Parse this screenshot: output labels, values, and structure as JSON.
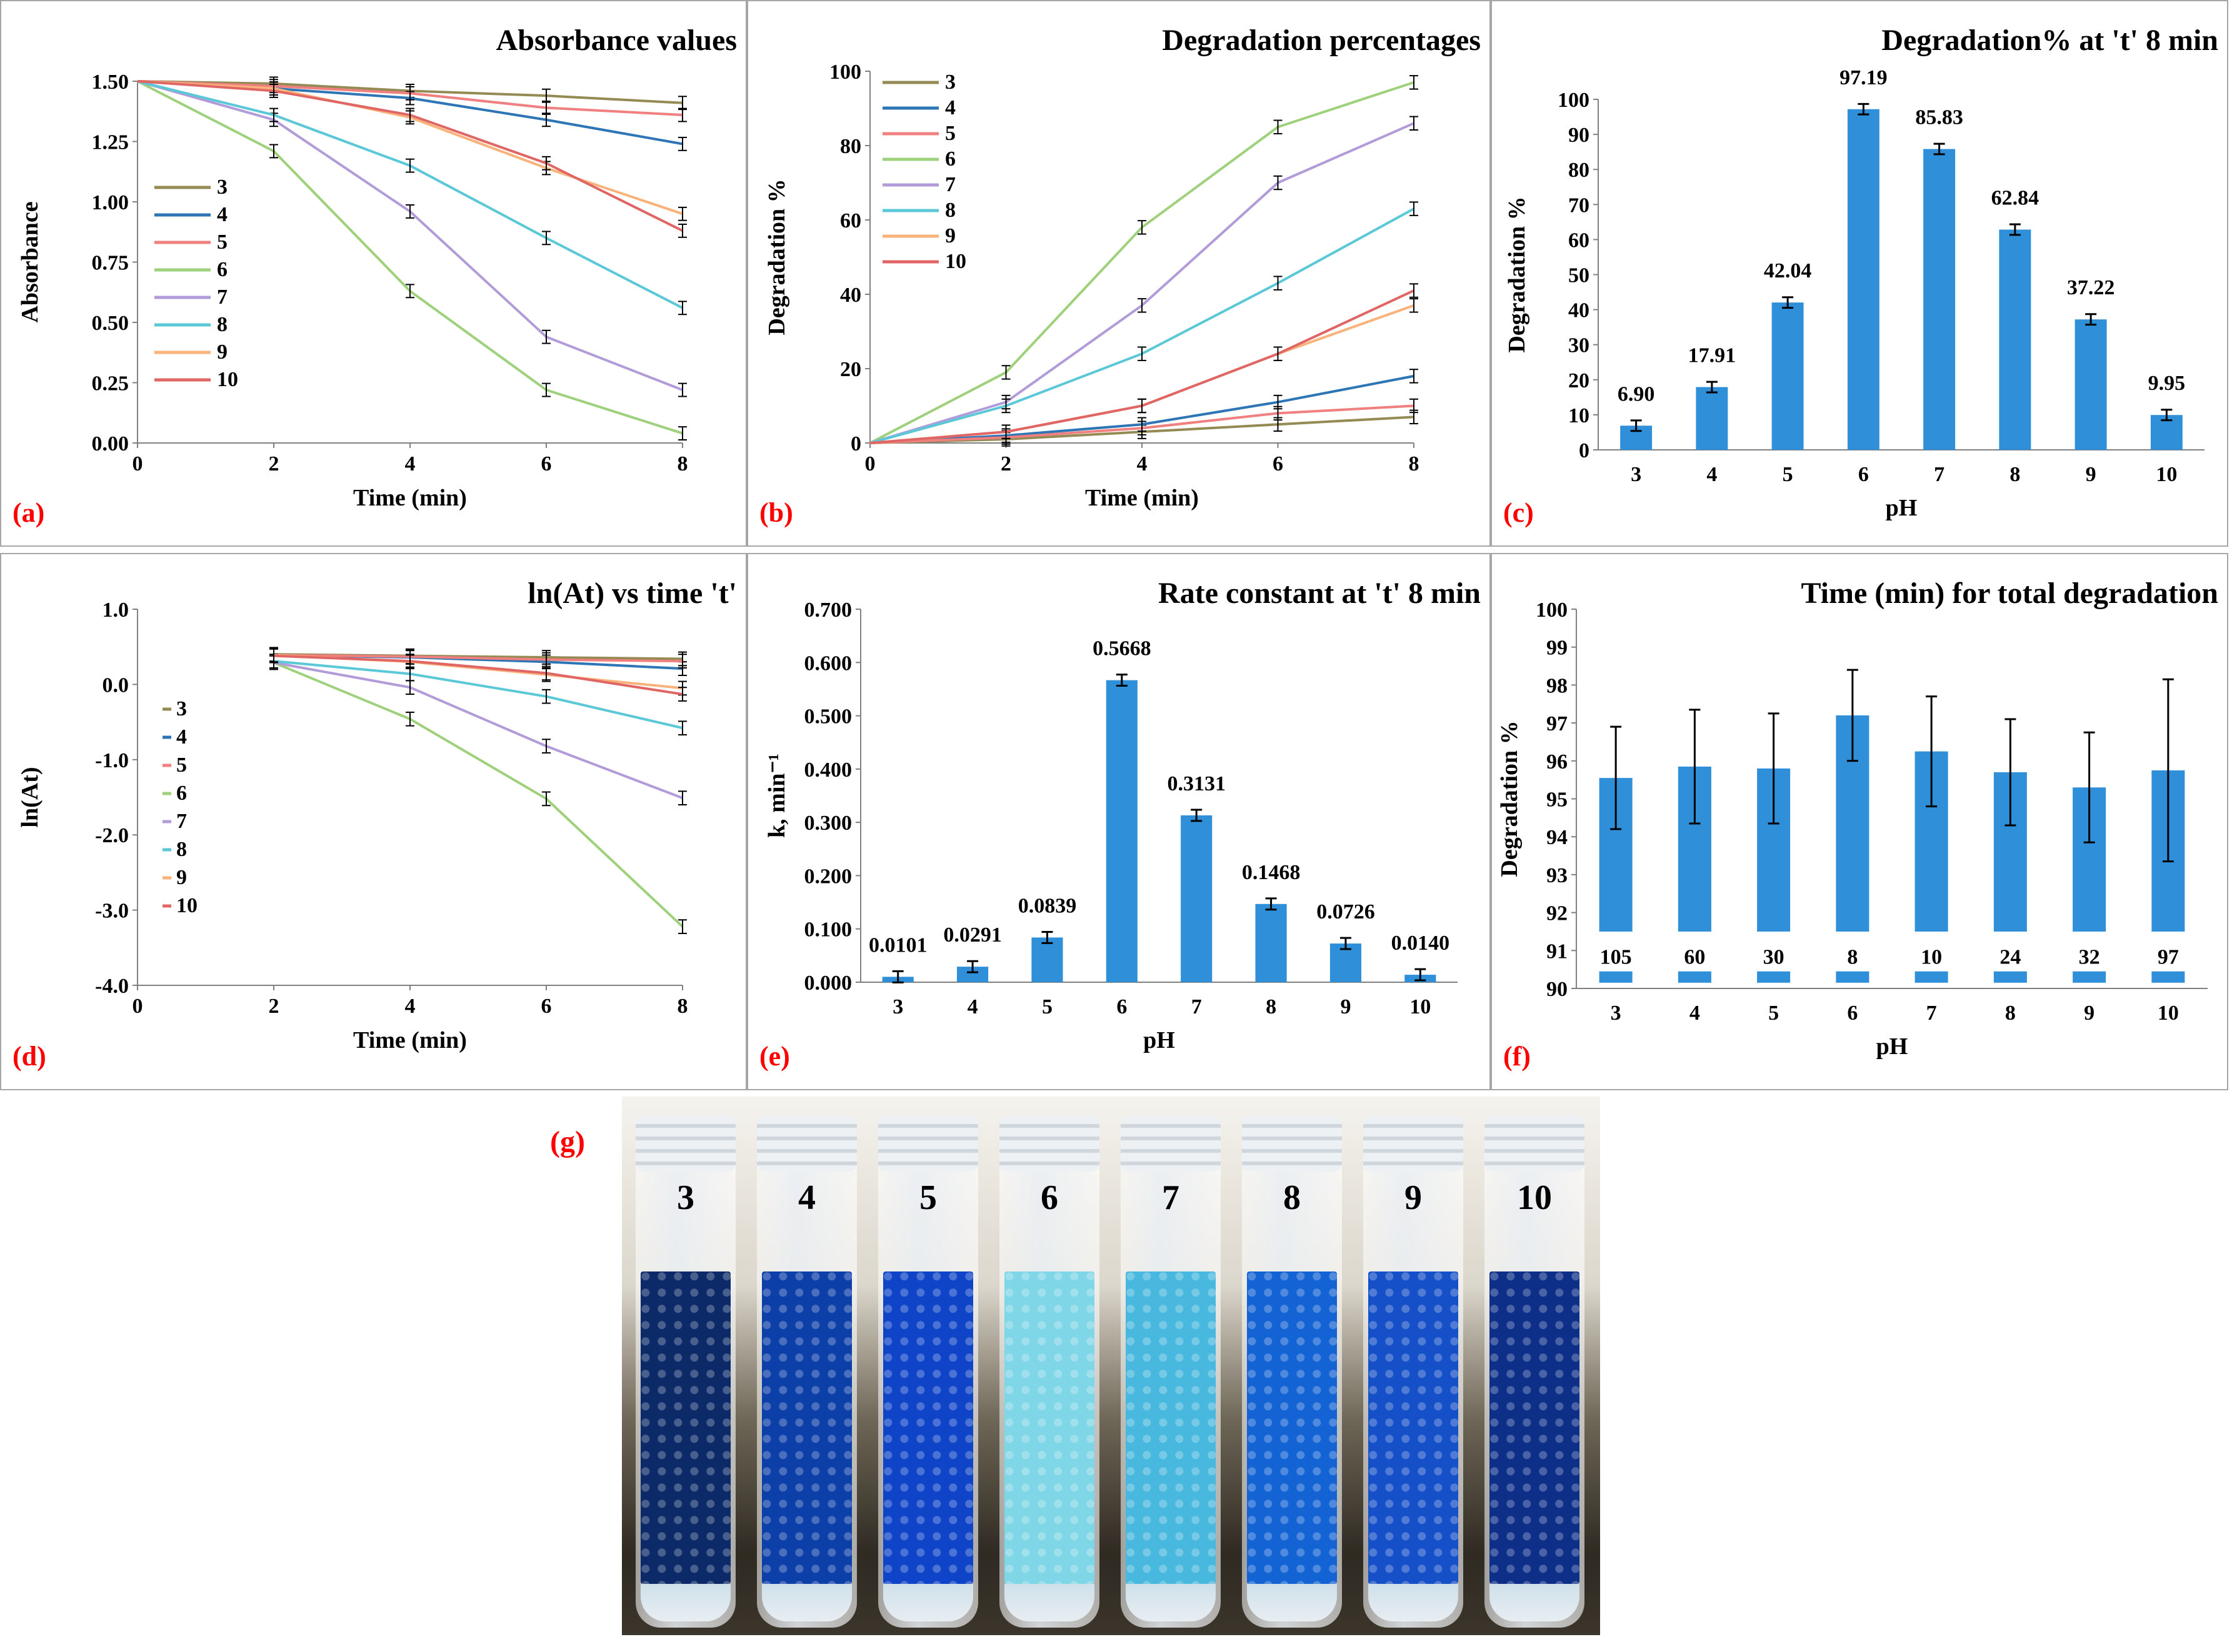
{
  "colors": {
    "pH3": "#948a54",
    "pH4": "#2e75b6",
    "pH5": "#f08080",
    "pH6": "#9fd17d",
    "pH7": "#b19cd9",
    "pH8": "#5bc8d8",
    "pH9": "#fab27b",
    "pH10": "#e06666",
    "bar": "#2f8fd8",
    "label_red": "#ff0000"
  },
  "chart_data": [
    {
      "id": "a",
      "type": "line",
      "panel_label": "(a)",
      "title": "Absorbance values",
      "xlabel": "Time (min)",
      "ylabel": "Absorbance",
      "xlim": [
        0,
        8
      ],
      "ylim": [
        0,
        1.5
      ],
      "x_ticks": [
        "0",
        "2",
        "4",
        "6",
        "8"
      ],
      "y_ticks": [
        "0.00",
        "0.25",
        "0.50",
        "0.75",
        "1.00",
        "1.25",
        "1.50"
      ],
      "x": [
        0,
        2,
        4,
        6,
        8
      ],
      "legend": "left",
      "series": [
        {
          "name": "3",
          "values": [
            1.5,
            1.49,
            1.46,
            1.44,
            1.41
          ]
        },
        {
          "name": "4",
          "values": [
            1.5,
            1.47,
            1.43,
            1.34,
            1.24
          ]
        },
        {
          "name": "5",
          "values": [
            1.5,
            1.48,
            1.45,
            1.39,
            1.36
          ]
        },
        {
          "name": "6",
          "values": [
            1.5,
            1.21,
            0.63,
            0.22,
            0.04
          ]
        },
        {
          "name": "7",
          "values": [
            1.5,
            1.34,
            0.96,
            0.44,
            0.22
          ]
        },
        {
          "name": "8",
          "values": [
            1.5,
            1.36,
            1.15,
            0.85,
            0.56
          ]
        },
        {
          "name": "9",
          "values": [
            1.5,
            1.47,
            1.35,
            1.14,
            0.95
          ]
        },
        {
          "name": "10",
          "values": [
            1.5,
            1.46,
            1.36,
            1.16,
            0.88
          ]
        }
      ]
    },
    {
      "id": "b",
      "type": "line",
      "panel_label": "(b)",
      "title": "Degradation percentages",
      "xlabel": "Time (min)",
      "ylabel": "Degradation %",
      "xlim": [
        0,
        8
      ],
      "ylim": [
        0,
        100
      ],
      "x_ticks": [
        "0",
        "2",
        "4",
        "6",
        "8"
      ],
      "y_ticks": [
        "0",
        "20",
        "40",
        "60",
        "80",
        "100"
      ],
      "x": [
        0,
        2,
        4,
        6,
        8
      ],
      "legend": "top-left",
      "series": [
        {
          "name": "3",
          "values": [
            0,
            1,
            3,
            5,
            7
          ]
        },
        {
          "name": "4",
          "values": [
            0,
            2,
            5,
            11,
            18
          ]
        },
        {
          "name": "5",
          "values": [
            0,
            1.5,
            4,
            8,
            10
          ]
        },
        {
          "name": "6",
          "values": [
            0,
            19,
            58,
            85,
            97
          ]
        },
        {
          "name": "7",
          "values": [
            0,
            11,
            37,
            70,
            86
          ]
        },
        {
          "name": "8",
          "values": [
            0,
            10,
            24,
            43,
            63
          ]
        },
        {
          "name": "9",
          "values": [
            0,
            3,
            10,
            24,
            37
          ]
        },
        {
          "name": "10",
          "values": [
            0,
            3,
            10,
            24,
            41
          ]
        }
      ]
    },
    {
      "id": "c",
      "type": "bar",
      "panel_label": "(c)",
      "title": "Degradation% at 't' 8 min",
      "xlabel": "pH",
      "ylabel": "Degradation %",
      "ylim": [
        0,
        100
      ],
      "y_ticks": [
        "0",
        "10",
        "20",
        "30",
        "40",
        "50",
        "60",
        "70",
        "80",
        "90",
        "100"
      ],
      "categories": [
        "3",
        "4",
        "5",
        "6",
        "7",
        "8",
        "9",
        "10"
      ],
      "values": [
        6.9,
        17.91,
        42.04,
        97.19,
        85.83,
        62.84,
        37.22,
        9.95
      ],
      "data_labels": [
        "6.90",
        "17.91",
        "42.04",
        "97.19",
        "85.83",
        "62.84",
        "37.22",
        "9.95"
      ]
    },
    {
      "id": "d",
      "type": "line",
      "panel_label": "(d)",
      "title": "ln(At) vs time 't'",
      "xlabel": "Time (min)",
      "ylabel": "ln(At)",
      "xlim": [
        0,
        8
      ],
      "ylim": [
        -4,
        1
      ],
      "x_ticks": [
        "0",
        "2",
        "4",
        "6",
        "8"
      ],
      "y_ticks": [
        "-4.0",
        "-3.0",
        "-2.0",
        "-1.0",
        "0.0",
        "1.0"
      ],
      "x": [
        2,
        4,
        6,
        8
      ],
      "legend": "left",
      "series": [
        {
          "name": "3",
          "values": [
            0.4,
            0.38,
            0.36,
            0.34
          ]
        },
        {
          "name": "4",
          "values": [
            0.39,
            0.36,
            0.3,
            0.21
          ]
        },
        {
          "name": "5",
          "values": [
            0.39,
            0.37,
            0.33,
            0.31
          ]
        },
        {
          "name": "6",
          "values": [
            0.29,
            -0.46,
            -1.52,
            -3.22
          ]
        },
        {
          "name": "7",
          "values": [
            0.29,
            -0.04,
            -0.82,
            -1.51
          ]
        },
        {
          "name": "8",
          "values": [
            0.31,
            0.14,
            -0.16,
            -0.58
          ]
        },
        {
          "name": "9",
          "values": [
            0.39,
            0.3,
            0.13,
            -0.05
          ]
        },
        {
          "name": "10",
          "values": [
            0.38,
            0.31,
            0.15,
            -0.13
          ]
        }
      ]
    },
    {
      "id": "e",
      "type": "bar",
      "panel_label": "(e)",
      "title": "Rate constant at 't' 8 min",
      "xlabel": "pH",
      "ylabel": "k, min⁻¹",
      "ylim": [
        0,
        0.7
      ],
      "y_ticks": [
        "0.000",
        "0.100",
        "0.200",
        "0.300",
        "0.400",
        "0.500",
        "0.600",
        "0.700"
      ],
      "categories": [
        "3",
        "4",
        "5",
        "6",
        "7",
        "8",
        "9",
        "10"
      ],
      "values": [
        0.0101,
        0.0291,
        0.0839,
        0.5668,
        0.3131,
        0.1468,
        0.0726,
        0.014
      ],
      "data_labels": [
        "0.0101",
        "0.0291",
        "0.0839",
        "0.5668",
        "0.3131",
        "0.1468",
        "0.0726",
        "0.0140"
      ]
    },
    {
      "id": "f",
      "type": "bar",
      "panel_label": "(f)",
      "title": "Time (min) for total degradation",
      "xlabel": "pH",
      "ylabel": "Degradation %",
      "ylim": [
        90,
        100
      ],
      "y_ticks": [
        "90",
        "91",
        "92",
        "93",
        "94",
        "95",
        "96",
        "97",
        "98",
        "99",
        "100"
      ],
      "categories": [
        "3",
        "4",
        "5",
        "6",
        "7",
        "8",
        "9",
        "10"
      ],
      "values": [
        95.55,
        95.85,
        95.8,
        97.2,
        96.25,
        95.7,
        95.3,
        95.75
      ],
      "errors": [
        1.35,
        1.5,
        1.45,
        1.2,
        1.45,
        1.4,
        1.45,
        2.4
      ],
      "data_labels": [
        "105",
        "60",
        "30",
        "8",
        "10",
        "24",
        "32",
        "97"
      ]
    }
  ],
  "photo": {
    "label": "(g)",
    "tubes": [
      {
        "label": "3",
        "color": "#0c2a68"
      },
      {
        "label": "4",
        "color": "#0c3fa8"
      },
      {
        "label": "5",
        "color": "#0f44c8"
      },
      {
        "label": "6",
        "color": "#7fd6e6"
      },
      {
        "label": "7",
        "color": "#49b8de"
      },
      {
        "label": "8",
        "color": "#1463d4"
      },
      {
        "label": "9",
        "color": "#1650c8"
      },
      {
        "label": "10",
        "color": "#0d2f88"
      }
    ]
  }
}
